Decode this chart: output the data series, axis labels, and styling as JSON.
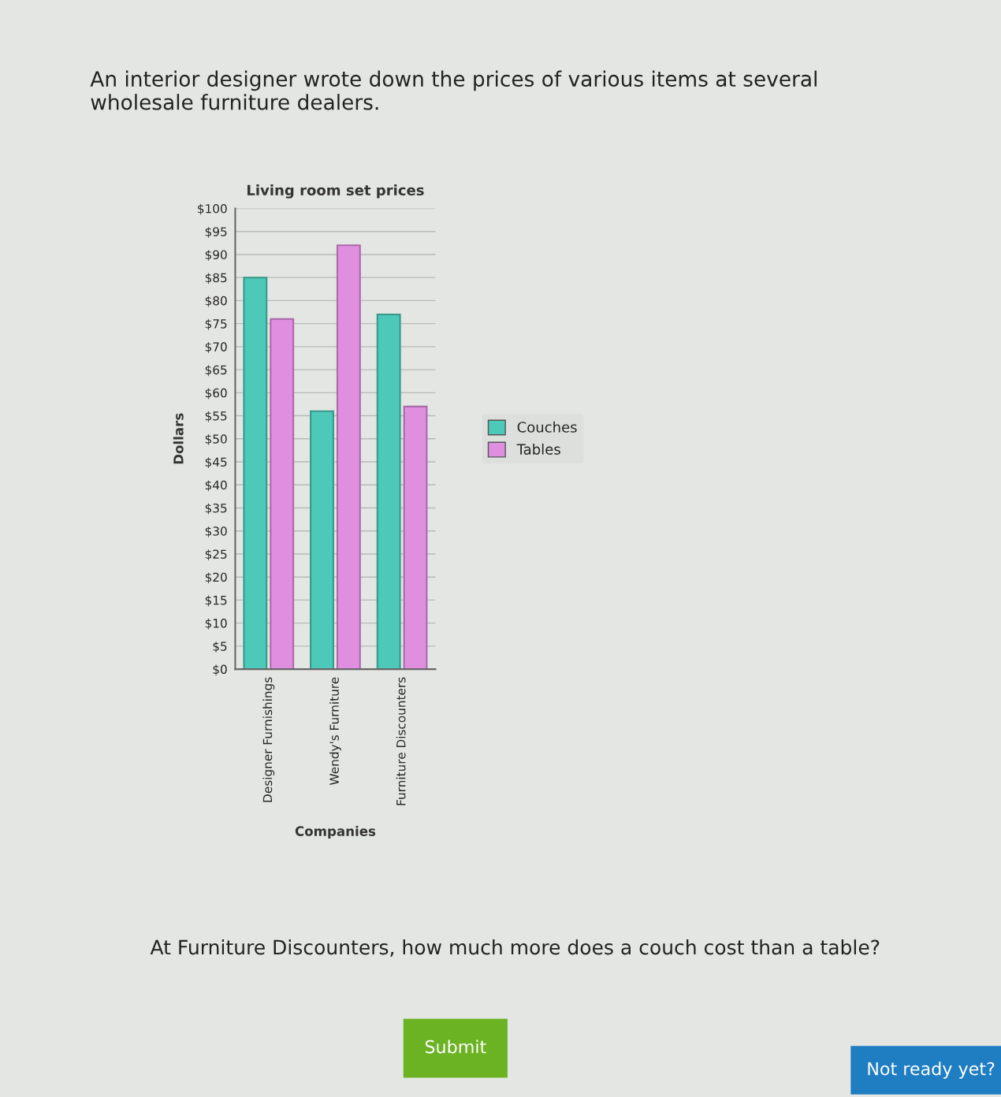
{
  "chart_data": {
    "type": "bar",
    "title": "Living room set prices",
    "xlabel": "Companies",
    "ylabel": "Dollars",
    "categories": [
      "Designer Furnishings",
      "Wendy's Furniture",
      "Furniture Discounters"
    ],
    "series": [
      {
        "name": "Couches",
        "color": "#4cc9b8",
        "values": [
          85,
          56,
          77
        ]
      },
      {
        "name": "Tables",
        "color": "#e08ee0",
        "values": [
          76,
          92,
          57
        ]
      }
    ],
    "ylim": [
      0,
      100
    ],
    "yticks": [
      {
        "value": 0,
        "label": "$0"
      },
      {
        "value": 5,
        "label": "$5"
      },
      {
        "value": 10,
        "label": "$10"
      },
      {
        "value": 15,
        "label": "$15"
      },
      {
        "value": 20,
        "label": "$20"
      },
      {
        "value": 25,
        "label": "$25"
      },
      {
        "value": 30,
        "label": "$30"
      },
      {
        "value": 35,
        "label": "$35"
      },
      {
        "value": 40,
        "label": "$40"
      },
      {
        "value": 45,
        "label": "$45"
      },
      {
        "value": 50,
        "label": "$50"
      },
      {
        "value": 55,
        "label": "$55"
      },
      {
        "value": 60,
        "label": "$60"
      },
      {
        "value": 65,
        "label": "$65"
      },
      {
        "value": 70,
        "label": "$70"
      },
      {
        "value": 75,
        "label": "$75"
      },
      {
        "value": 80,
        "label": "$80"
      },
      {
        "value": 85,
        "label": "$85"
      },
      {
        "value": 90,
        "label": "$90"
      },
      {
        "value": 95,
        "label": "$95"
      },
      {
        "value": 100,
        "label": "$100"
      }
    ],
    "grid": "y",
    "legend": "right",
    "annotations": [
      "An interior designer wrote down the prices of various items at several wholesale furniture dealers.",
      "At Furniture Discounters, how much more does a couch cost than a table?",
      "Submit",
      "Not ready yet?"
    ]
  }
}
